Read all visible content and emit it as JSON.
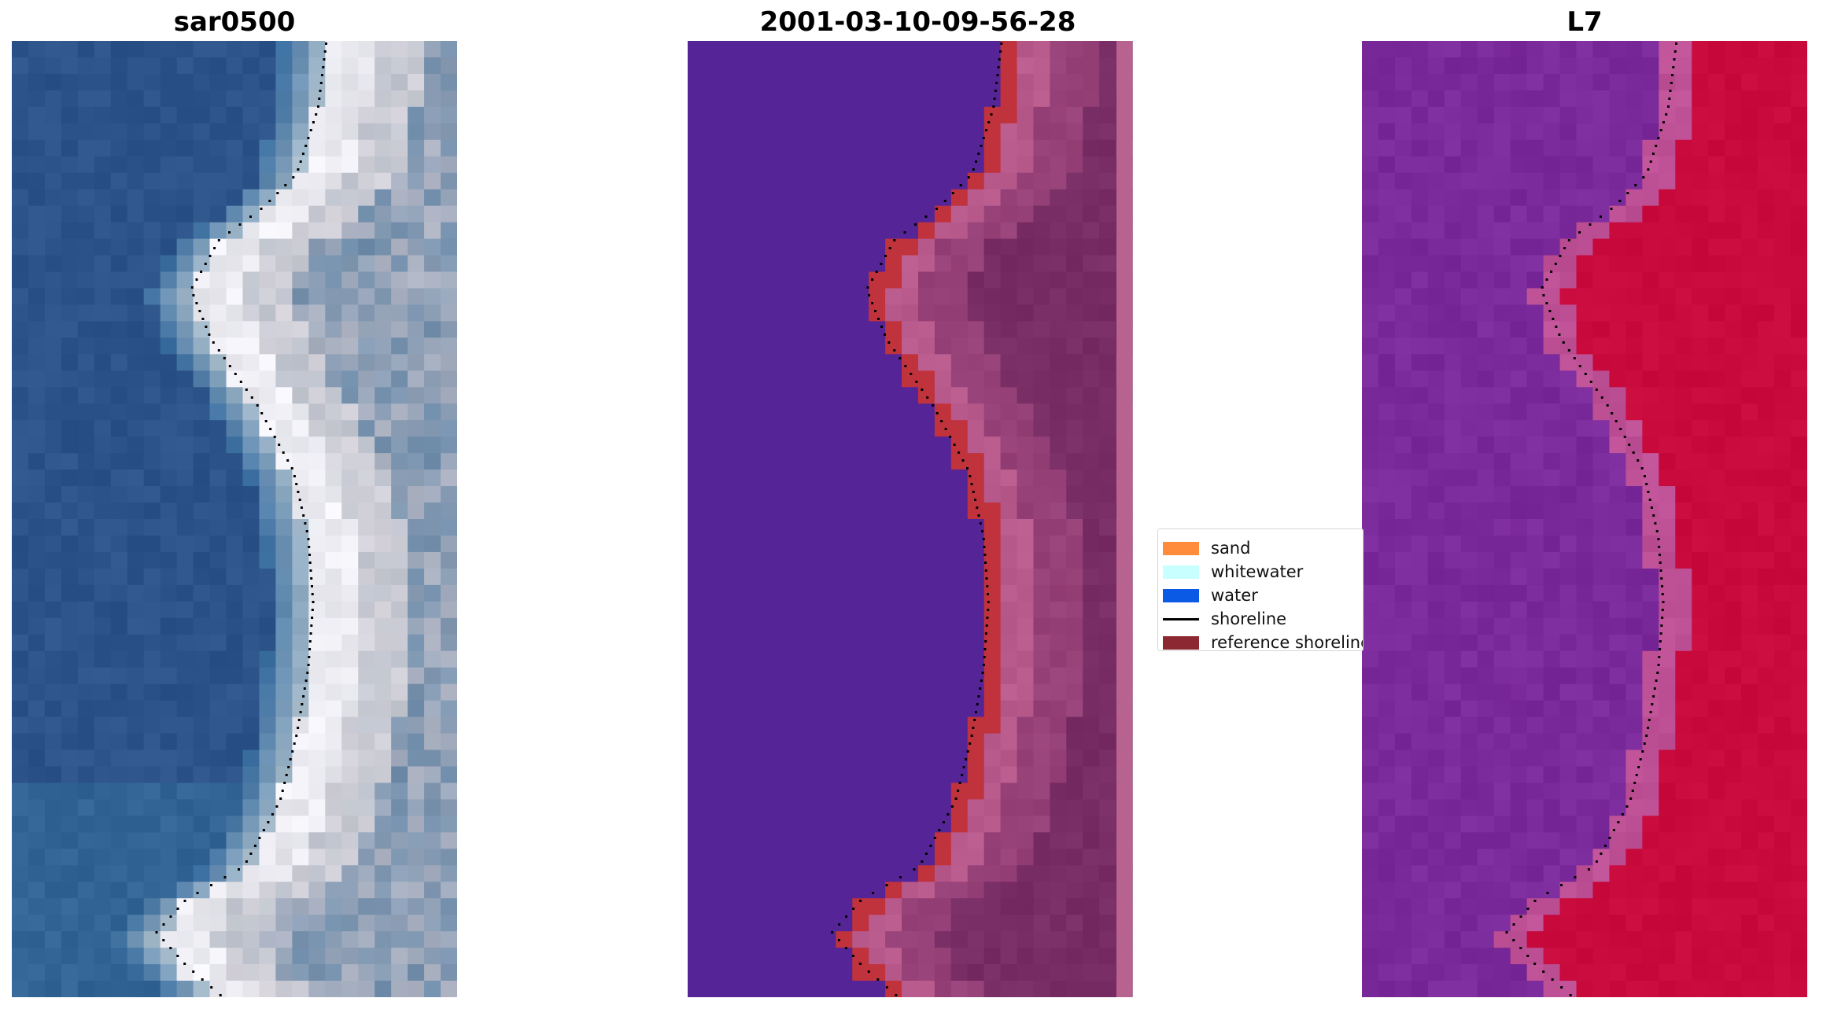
{
  "panels": [
    {
      "title": "sar0500",
      "style": "rgb"
    },
    {
      "title": "2001-03-10-09-56-28",
      "style": "classified"
    },
    {
      "title": "L7",
      "style": "index"
    }
  ],
  "legend": {
    "items": [
      {
        "label": "sand",
        "color": "#ff8c3c",
        "kind": "patch"
      },
      {
        "label": "whitewater",
        "color": "#c8ffff",
        "kind": "patch"
      },
      {
        "label": "water",
        "color": "#0a5ae6",
        "kind": "patch"
      },
      {
        "label": "shoreline",
        "color": "#000000",
        "kind": "line"
      },
      {
        "label": "reference shoreline",
        "color": "#8c2832",
        "kind": "patch"
      }
    ]
  },
  "colors": {
    "water_class": "#552497",
    "reference_shoreline": "#c0323c",
    "index_high": "#c8003c",
    "index_low": "#7a2a9a"
  }
}
